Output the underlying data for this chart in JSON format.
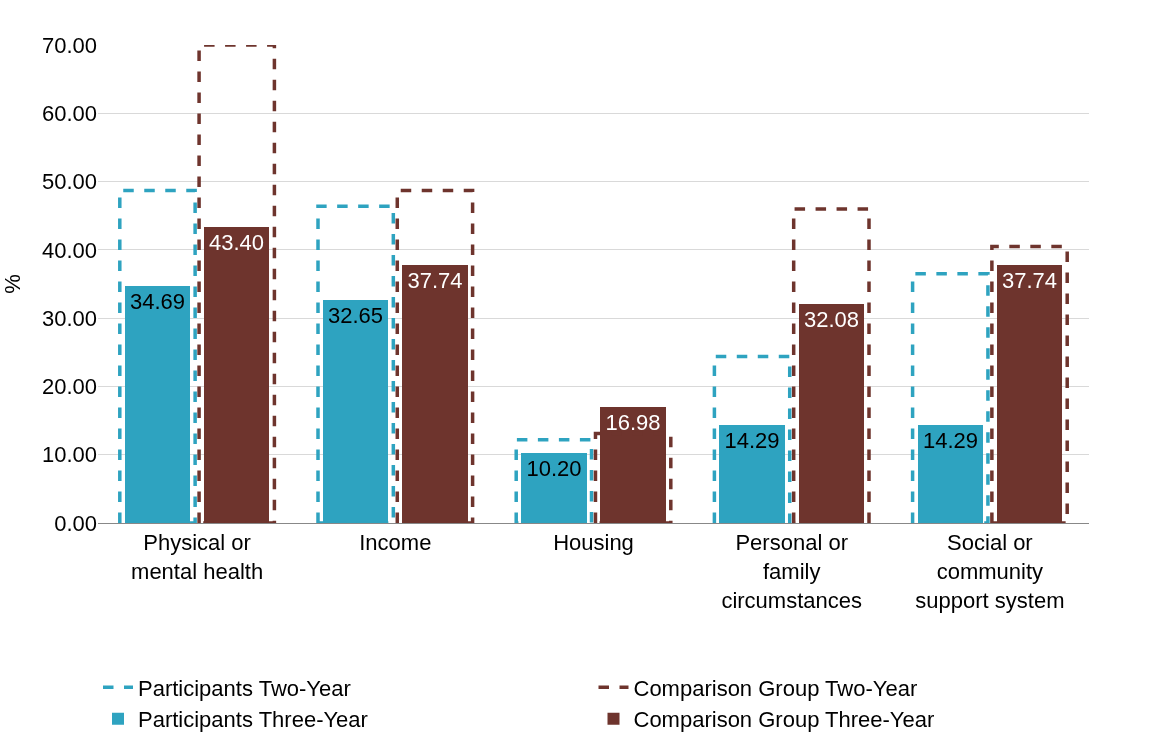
{
  "chart_data": {
    "type": "bar",
    "ylabel": "%",
    "categories": [
      "Physical or mental health",
      "Income",
      "Housing",
      "Personal or family circumstances",
      "Social or community support system"
    ],
    "series": [
      {
        "name": "Participants Two-Year",
        "color": "#2ea3c0",
        "line_style": "dashed",
        "values": [
          48.7,
          46.4,
          12.2,
          24.4,
          36.5
        ]
      },
      {
        "name": "Comparison Group Two-Year",
        "color": "#6e342d",
        "line_style": "dashed",
        "values": [
          70.0,
          48.7,
          13.1,
          46.0,
          40.5
        ]
      },
      {
        "name": "Participants Three-Year",
        "color": "#2ea3c0",
        "values": [
          34.69,
          32.65,
          10.2,
          14.29,
          14.29
        ],
        "value_labels": [
          "34.69",
          "32.65",
          "10.20",
          "14.29",
          "14.29"
        ]
      },
      {
        "name": "Comparison Group Three-Year",
        "color": "#6e342d",
        "values": [
          43.4,
          37.74,
          16.98,
          32.08,
          37.74
        ],
        "value_labels": [
          "43.40",
          "37.74",
          "16.98",
          "32.08",
          "37.74"
        ]
      }
    ],
    "ylim": [
      0,
      70
    ],
    "yticks": [
      {
        "value": 0,
        "label": "0.00"
      },
      {
        "value": 10,
        "label": "10.00"
      },
      {
        "value": 20,
        "label": "20.00"
      },
      {
        "value": 30,
        "label": "30.00"
      },
      {
        "value": 40,
        "label": "40.00"
      },
      {
        "value": 50,
        "label": "50.00"
      },
      {
        "value": 60,
        "label": "60.00"
      },
      {
        "value": 70,
        "label": "70.00"
      }
    ],
    "grid": "y",
    "legend": "bottom"
  }
}
